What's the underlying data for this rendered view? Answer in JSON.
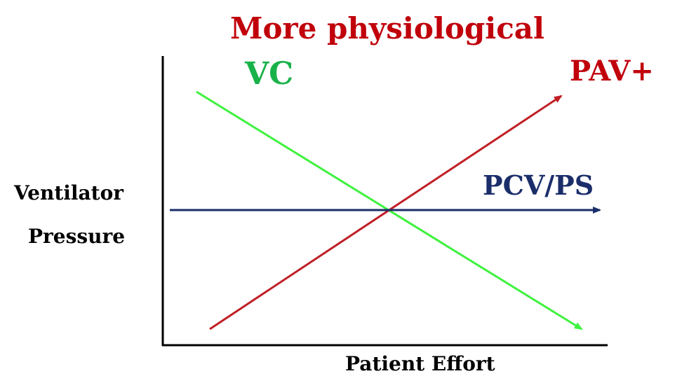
{
  "title": "More physiological",
  "colors": {
    "title": "#c0000b",
    "vc": "#19b24a",
    "vc_line": "#3ef23e",
    "pav": "#c0000b",
    "pav_line": "#c01f26",
    "pcv": "#1b2e6a",
    "axis": "#000000"
  },
  "axes": {
    "x_label": "Patient Effort",
    "y_label_line1": "Ventilator",
    "y_label_line2": "Pressure"
  },
  "lines": {
    "vc": {
      "label": "VC",
      "trend": "decreasing"
    },
    "pav": {
      "label": "PAV+",
      "trend": "increasing"
    },
    "pcv": {
      "label": "PCV/PS",
      "trend": "constant"
    }
  }
}
